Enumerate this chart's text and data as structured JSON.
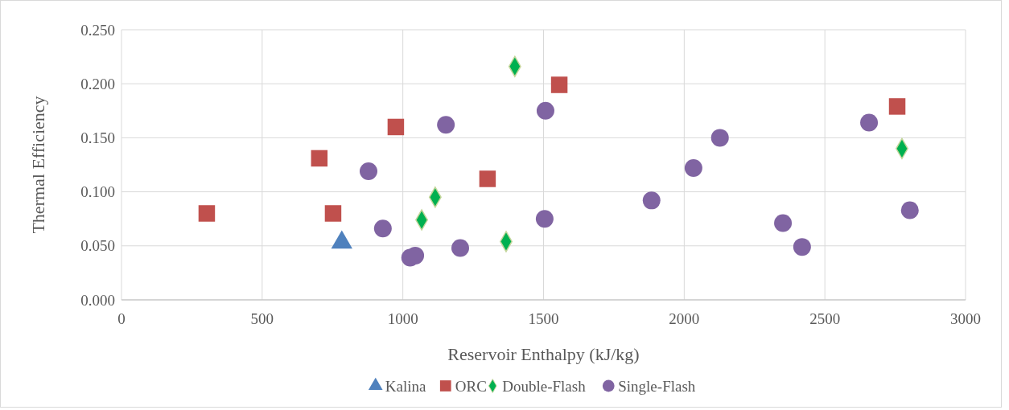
{
  "chart_data": {
    "type": "scatter",
    "xlabel": "Reservoir Enthalpy (kJ/kg)",
    "ylabel": "Thermal Efficiency",
    "xlim": [
      0,
      3000
    ],
    "xticks": [
      0,
      500,
      1000,
      1500,
      2000,
      2500,
      3000
    ],
    "ylim": [
      0,
      0.25
    ],
    "yticks": [
      {
        "value": 0,
        "label": "0.000"
      },
      {
        "value": 0.05,
        "label": "0.050"
      },
      {
        "value": 0.1,
        "label": "0.100"
      },
      {
        "value": 0.15,
        "label": "0.150"
      },
      {
        "value": 0.2,
        "label": "0.200"
      },
      {
        "value": 0.25,
        "label": "0.250"
      }
    ],
    "grid": true,
    "legend": "bottom",
    "series": [
      {
        "name": "Kalina",
        "color": "#4f81bd",
        "marker": "triangle",
        "x": [
          783
        ],
        "values": [
          0.053
        ]
      },
      {
        "name": "ORC",
        "color": "#c0504d",
        "marker": "square",
        "x": [
          303,
          703,
          752,
          975,
          1301,
          1556,
          2757
        ],
        "values": [
          0.08,
          0.131,
          0.08,
          0.16,
          0.112,
          0.199,
          0.179
        ]
      },
      {
        "name": "Double-Flash",
        "color": "#00b050",
        "marker": "diamond",
        "x": [
          1398,
          1115,
          1067,
          1367,
          2774
        ],
        "values": [
          0.216,
          0.095,
          0.074,
          0.054,
          0.14
        ]
      },
      {
        "name": "Single-Flash",
        "color": "#8064a2",
        "marker": "circle",
        "x": [
          878,
          929,
          1026,
          1044,
          1153,
          1204,
          1507,
          1504,
          1884,
          2033,
          2127,
          2351,
          2419,
          2657,
          2802
        ],
        "values": [
          0.119,
          0.066,
          0.039,
          0.041,
          0.162,
          0.048,
          0.175,
          0.075,
          0.092,
          0.122,
          0.15,
          0.071,
          0.049,
          0.164,
          0.083
        ]
      }
    ]
  }
}
